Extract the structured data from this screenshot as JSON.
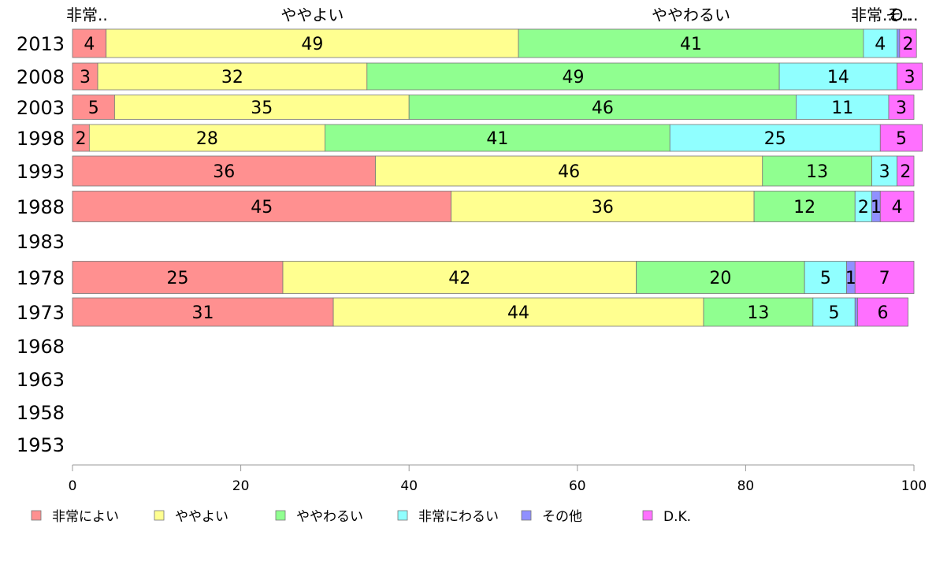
{
  "chart_data": {
    "type": "bar",
    "orientation": "horizontal",
    "stacked": true,
    "categories": [
      "2013",
      "2008",
      "2003",
      "1998",
      "1993",
      "1988",
      "1983",
      "1978",
      "1973",
      "1968",
      "1963",
      "1958",
      "1953"
    ],
    "series": [
      {
        "name": "非常によい",
        "color": "#ff9090",
        "values": [
          4,
          3,
          5,
          2,
          36,
          45,
          null,
          25,
          31,
          null,
          null,
          null,
          null
        ]
      },
      {
        "name": "ややよい",
        "color": "#ffff90",
        "values": [
          49,
          32,
          35,
          28,
          46,
          36,
          null,
          42,
          44,
          null,
          null,
          null,
          null
        ]
      },
      {
        "name": "ややわるい",
        "color": "#90ff90",
        "values": [
          41,
          49,
          46,
          41,
          13,
          12,
          null,
          20,
          13,
          null,
          null,
          null,
          null
        ]
      },
      {
        "name": "非常にわるい",
        "color": "#90ffff",
        "values": [
          4,
          14,
          11,
          25,
          3,
          2,
          null,
          5,
          5,
          null,
          null,
          null,
          null
        ]
      },
      {
        "name": "その他",
        "color": "#9090ff",
        "values": [
          0.3,
          0,
          0,
          0,
          0,
          1,
          null,
          1,
          0.3,
          null,
          null,
          null,
          null
        ]
      },
      {
        "name": "D.K.",
        "color": "#ff70ff",
        "values": [
          2,
          3,
          3,
          5,
          2,
          4,
          null,
          7,
          6,
          null,
          null,
          null,
          null
        ]
      }
    ],
    "segment_labels": [
      [
        "4",
        "49",
        "41",
        "4",
        "",
        "2"
      ],
      [
        "3",
        "32",
        "49",
        "14",
        "",
        "3"
      ],
      [
        "5",
        "35",
        "46",
        "11",
        "",
        "3"
      ],
      [
        "2",
        "28",
        "41",
        "25",
        "",
        "5"
      ],
      [
        "36",
        "46",
        "13",
        "3",
        "",
        "2"
      ],
      [
        "45",
        "36",
        "12",
        "2",
        "1",
        "4"
      ],
      [
        "",
        "",
        "",
        "",
        "",
        ""
      ],
      [
        "25",
        "42",
        "20",
        "5",
        "1",
        "7"
      ],
      [
        "31",
        "44",
        "13",
        "5",
        "",
        "6"
      ],
      [
        "",
        "",
        "",
        "",
        "",
        ""
      ],
      [
        "",
        "",
        "",
        "",
        "",
        ""
      ],
      [
        "",
        "",
        "",
        "",
        "",
        ""
      ],
      [
        "",
        "",
        "",
        "",
        "",
        ""
      ]
    ],
    "top_labels": [
      "非常..",
      "ややよい",
      "ややわるい",
      "非常...",
      "そ..",
      "D..."
    ],
    "xlim": [
      0,
      100
    ],
    "xticks": [
      0,
      20,
      40,
      60,
      80,
      100
    ],
    "xtick_labels": [
      "0",
      "20",
      "40",
      "60",
      "80",
      "100"
    ],
    "grid": false,
    "legend_position": "bottom"
  }
}
